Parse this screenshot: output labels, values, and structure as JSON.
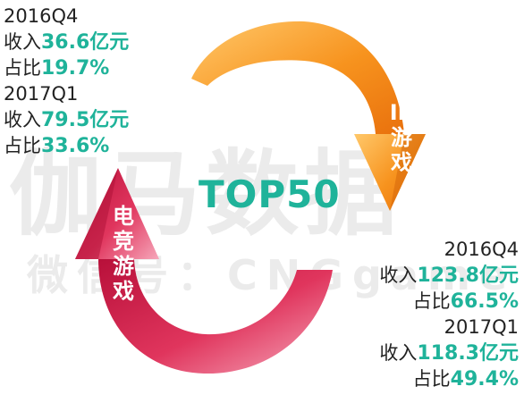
{
  "watermark": {
    "main": "伽马数据",
    "sub": "微信号：CNGgame"
  },
  "center_title": "TOP50",
  "ip_arrow": {
    "label_lines": [
      "IP",
      "游",
      "戏"
    ],
    "color": "#f58a1f"
  },
  "dj_arrow": {
    "label_lines": [
      "电",
      "竞",
      "游",
      "戏"
    ],
    "color": "#d9284e"
  },
  "left_stats": {
    "q1_period": "2016Q4",
    "q1_revenue_prefix": "收入",
    "q1_revenue_value": "36.6亿元",
    "q1_share_prefix": "占比",
    "q1_share_value": "19.7%",
    "q2_period": "2017Q1",
    "q2_revenue_prefix": "收入",
    "q2_revenue_value": "79.5亿元",
    "q2_share_prefix": "占比",
    "q2_share_value": "33.6%"
  },
  "right_stats": {
    "q1_period": "2016Q4",
    "q1_revenue_prefix": "收入",
    "q1_revenue_value": "123.8亿元",
    "q1_share_prefix": "占比",
    "q1_share_value": "66.5%",
    "q2_period": "2017Q1",
    "q2_revenue_prefix": "收入",
    "q2_revenue_value": "118.3亿元",
    "q2_share_prefix": "占比",
    "q2_share_value": "49.4%"
  },
  "colors": {
    "accent_green": "#1fb39a",
    "text_dark": "#222222",
    "watermark": "#ebebeb"
  }
}
